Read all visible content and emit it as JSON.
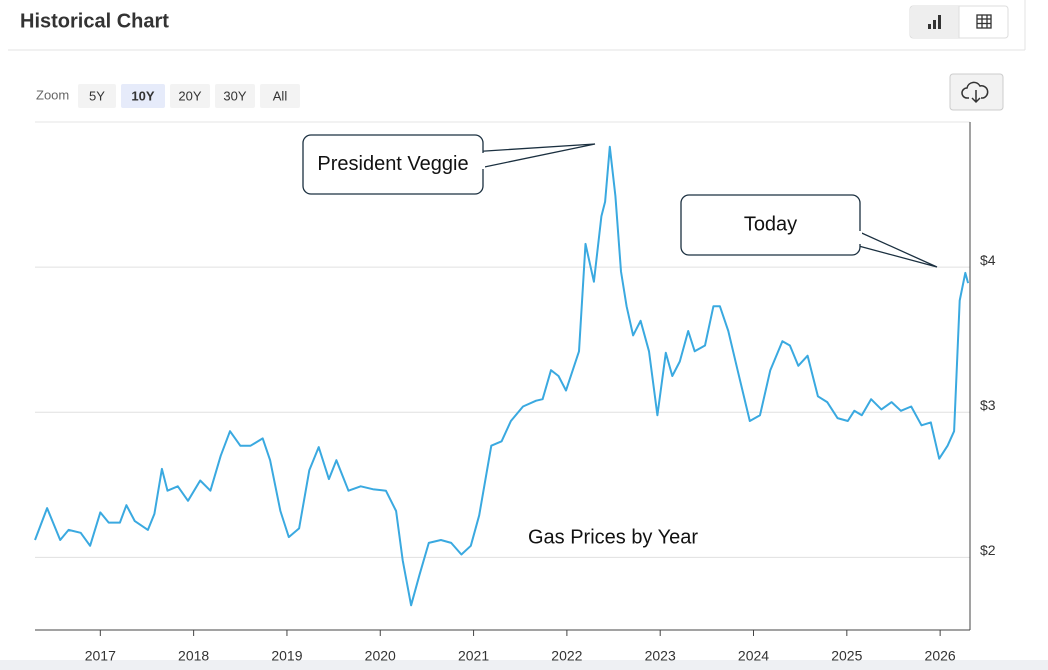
{
  "header": {
    "title": "Historical Chart"
  },
  "zoom": {
    "label": "Zoom",
    "options": [
      "5Y",
      "10Y",
      "20Y",
      "30Y",
      "All"
    ],
    "selected": 1
  },
  "chart_data": {
    "type": "line",
    "title": "Gas Prices by Year",
    "annotations": [
      {
        "text": "President Veggie"
      },
      {
        "text": "Today"
      }
    ],
    "color": "#3aa9e0",
    "grid": true,
    "xlim": [
      2016.3,
      2026.32
    ],
    "xticks": [
      2017,
      2018,
      2019,
      2020,
      2021,
      2022,
      2023,
      2024,
      2025,
      2026
    ],
    "ylim": [
      1.5,
      5
    ],
    "yticks": [
      {
        "value": 2,
        "label": "$2"
      },
      {
        "value": 3,
        "label": "$3"
      },
      {
        "value": 4,
        "label": "$4"
      }
    ],
    "x": [
      2016.3,
      2016.43,
      2016.57,
      2016.66,
      2016.79,
      2016.89,
      2017.0,
      2017.09,
      2017.21,
      2017.28,
      2017.37,
      2017.51,
      2017.58,
      2017.66,
      2017.72,
      2017.83,
      2017.94,
      2018.07,
      2018.18,
      2018.29,
      2018.39,
      2018.5,
      2018.61,
      2018.74,
      2018.82,
      2018.93,
      2019.02,
      2019.13,
      2019.24,
      2019.34,
      2019.45,
      2019.53,
      2019.66,
      2019.79,
      2019.92,
      2020.06,
      2020.17,
      2020.24,
      2020.33,
      2020.42,
      2020.52,
      2020.65,
      2020.76,
      2020.87,
      2020.97,
      2021.06,
      2021.19,
      2021.3,
      2021.4,
      2021.53,
      2021.67,
      2021.74,
      2021.83,
      2021.91,
      2021.99,
      2022.13,
      2022.2,
      2022.29,
      2022.37,
      2022.41,
      2022.46,
      2022.52,
      2022.58,
      2022.64,
      2022.71,
      2022.79,
      2022.88,
      2022.97,
      2023.06,
      2023.13,
      2023.21,
      2023.3,
      2023.37,
      2023.48,
      2023.57,
      2023.64,
      2023.73,
      2023.83,
      2023.96,
      2024.07,
      2024.18,
      2024.31,
      2024.39,
      2024.48,
      2024.58,
      2024.69,
      2024.79,
      2024.9,
      2025.01,
      2025.08,
      2025.16,
      2025.26,
      2025.37,
      2025.48,
      2025.58,
      2025.69,
      2025.8,
      2025.9,
      2025.99,
      2026.08,
      2026.15,
      2026.21,
      2026.27,
      2026.3
    ],
    "values": [
      2.12,
      2.34,
      2.12,
      2.19,
      2.17,
      2.08,
      2.31,
      2.24,
      2.24,
      2.36,
      2.25,
      2.19,
      2.3,
      2.61,
      2.46,
      2.49,
      2.39,
      2.53,
      2.46,
      2.7,
      2.87,
      2.77,
      2.77,
      2.82,
      2.67,
      2.32,
      2.14,
      2.2,
      2.6,
      2.76,
      2.54,
      2.67,
      2.46,
      2.49,
      2.47,
      2.46,
      2.32,
      1.98,
      1.67,
      1.88,
      2.1,
      2.12,
      2.1,
      2.02,
      2.08,
      2.29,
      2.77,
      2.8,
      2.94,
      3.04,
      3.08,
      3.09,
      3.29,
      3.25,
      3.15,
      3.42,
      4.16,
      3.9,
      4.35,
      4.45,
      4.83,
      4.49,
      3.97,
      3.73,
      3.53,
      3.63,
      3.42,
      2.98,
      3.41,
      3.25,
      3.35,
      3.56,
      3.42,
      3.46,
      3.73,
      3.73,
      3.56,
      3.29,
      2.94,
      2.98,
      3.29,
      3.49,
      3.46,
      3.32,
      3.39,
      3.11,
      3.07,
      2.96,
      2.94,
      3.01,
      2.98,
      3.09,
      3.02,
      3.07,
      3.01,
      3.04,
      2.91,
      2.93,
      2.68,
      2.77,
      2.87,
      3.77,
      3.96,
      3.89
    ]
  }
}
